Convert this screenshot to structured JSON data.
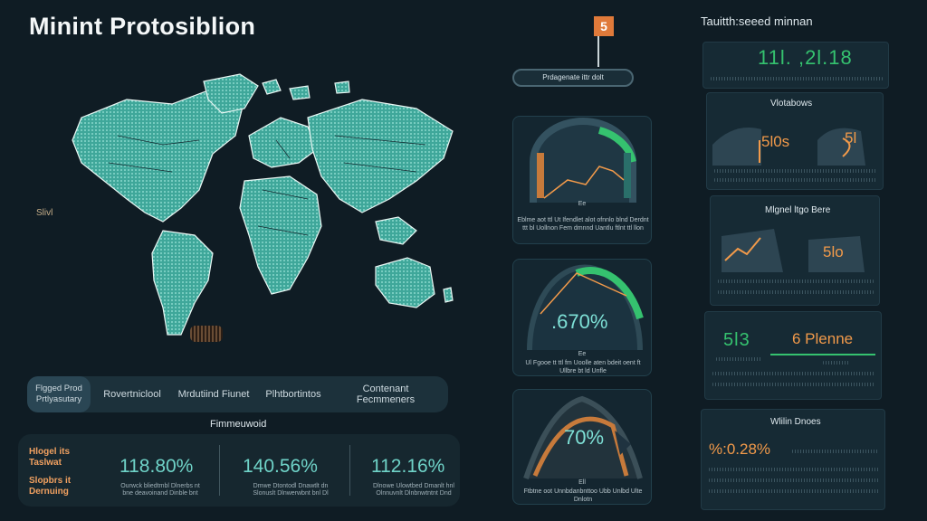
{
  "header": {
    "title": "Minint Protosiblion"
  },
  "map": {
    "label_left": "Slivl",
    "colors": {
      "land": "#3fa79a",
      "border": "#0f1c24",
      "glow": "#9fe8dc"
    }
  },
  "tabs": [
    {
      "label": "Flgged Prod Prtlyasutary",
      "active": true
    },
    {
      "label": "Rovertniclool"
    },
    {
      "label": "Mrdutiind Fiunet"
    },
    {
      "label": "Plhtbortintos"
    },
    {
      "label": "Contenant Fecmmeners"
    }
  ],
  "stats": {
    "section_label": "Fimmeuwoid",
    "side_top": "Hlogel its Taslwat",
    "side_bottom": "Slopbrs it Dernuing",
    "items": [
      {
        "value": "118.80%",
        "caption": "Ourwck bliedtmbl Dlnerbs nt bne deavoinand Dinble bnt"
      },
      {
        "value": "140.56%",
        "caption": "Dmwe Dtontodl Dnawtlt dn Slonuslt Dlnwerwbnt bnl Dl"
      },
      {
        "value": "112.16%",
        "caption": "Dlnowe Ulowtbed Dmanlt hnl Olnnuvnlt Dlnbnwtntnt Dnd"
      }
    ]
  },
  "flag_badge": {
    "label": "5",
    "banner": "Prdagenate ittr dolt"
  },
  "gauges": [
    {
      "value": "",
      "label": "Ee",
      "caption": "Eblme aot ttl Ut Ifendlet alot ofnnlo blnd Derdnt ttt bl Uollnon Fem dmnnd Uantlu ftlnt ttl llon"
    },
    {
      "value": ".670%",
      "label": "Ee",
      "caption": "Ul Fgooe tt ttl fm Uoolle aten bdeit oent ft Ullbre bt ld Unfle"
    },
    {
      "value": "70%",
      "label": "Ell",
      "caption": "Ftbtne oot Unnbdanbnttoo Ubb Unlbd Ulte Dnlotn"
    }
  ],
  "right": {
    "top_title": "Tauitth:seeed minnan",
    "top_value": "11l. ,2l.18",
    "panel2_title": "Vlotabows",
    "panel2_values": [
      "5l0s",
      "5l"
    ],
    "panel3_title": "Mlgnel ltgo Bere",
    "panel3_value": "5lo",
    "panel4_left": "5l3",
    "panel4_right": "6 Plenne",
    "panel5_title": "Wlilin Dnoes",
    "panel5_value": "%:0.28%"
  },
  "colors": {
    "bg": "#0f1c24",
    "teal": "#3fa79a",
    "accent_orange": "#f29a4a",
    "accent_green": "#35c26f",
    "text": "#dfe9ee"
  },
  "icons": [
    "flag-icon",
    "world-map",
    "gauge-icon"
  ]
}
